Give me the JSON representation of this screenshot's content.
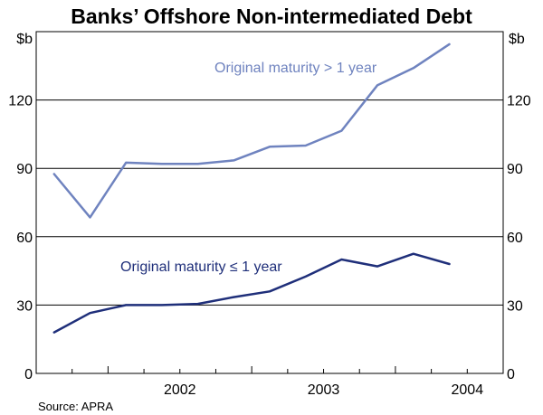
{
  "chart_data": {
    "type": "line",
    "title": "Banks’ Offshore Non-intermediated Debt",
    "y_unit_left": "$b",
    "y_unit_right": "$b",
    "ylim": [
      0,
      150
    ],
    "yticks": [
      0,
      30,
      60,
      90,
      120
    ],
    "xlim": [
      2001.5,
      2004.75
    ],
    "x_tick_labels": [
      "2002",
      "2003",
      "2004"
    ],
    "grid": true,
    "source": "Source: APRA",
    "series": [
      {
        "name": "Original maturity > 1 year",
        "color": "#6f83bf",
        "x": [
          2001.625,
          2001.875,
          2002.125,
          2002.375,
          2002.625,
          2002.875,
          2003.125,
          2003.375,
          2003.625,
          2003.875,
          2004.125,
          2004.375
        ],
        "values": [
          87.5,
          68.5,
          92.5,
          92,
          92,
          93.5,
          99.5,
          100,
          106.5,
          126.5,
          134,
          144.5
        ]
      },
      {
        "name": "Original maturity ≤ 1 year",
        "color": "#1f2f7a",
        "x": [
          2001.625,
          2001.875,
          2002.125,
          2002.375,
          2002.625,
          2002.875,
          2003.125,
          2003.375,
          2003.625,
          2003.875,
          2004.125,
          2004.375
        ],
        "values": [
          18,
          26.5,
          30,
          30,
          30.5,
          33.5,
          36,
          42.5,
          50,
          47,
          52.5,
          48
        ]
      }
    ]
  }
}
